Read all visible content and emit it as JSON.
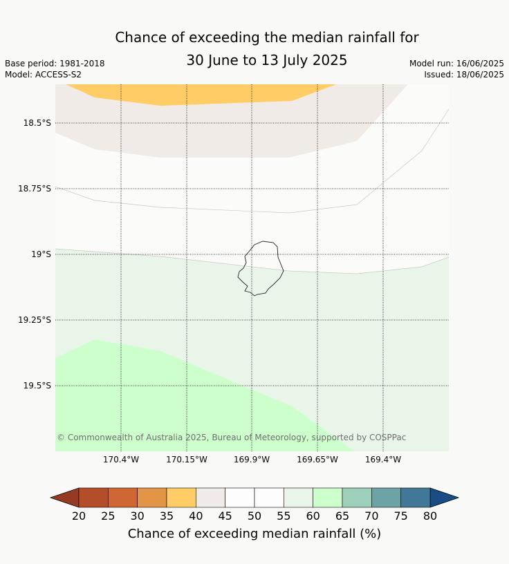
{
  "title": {
    "line1": "Chance of exceeding the median rainfall for",
    "line2": "30 June to 13 July 2025"
  },
  "meta": {
    "base_period": "Base period: 1981-2018",
    "model": "Model: ACCESS-S2",
    "model_run": "Model run: 16/06/2025",
    "issued": "Issued: 18/06/2025"
  },
  "map": {
    "lat_ticks": [
      "18.5°S",
      "18.75°S",
      "19°S",
      "19.25°S",
      "19.5°S"
    ],
    "lon_ticks": [
      "170.4°W",
      "170.15°W",
      "169.9°W",
      "169.65°W",
      "169.4°W"
    ],
    "credit": "© Commonwealth of Australia 2025, Bureau of Meteorology, supported by COSPPac",
    "regions": [
      {
        "category": "35-40",
        "color": "#ffcc66"
      },
      {
        "category": "40-45",
        "color": "#f0ebe6"
      },
      {
        "category": "45-50",
        "color": "#fbfbf9"
      },
      {
        "category": "55-60",
        "color": "#e9f5e8"
      },
      {
        "category": "60-65",
        "color": "#ccffcc"
      }
    ]
  },
  "colorbar": {
    "title": "Chance of exceeding median rainfall (%)",
    "tick_labels": [
      "20",
      "25",
      "30",
      "35",
      "40",
      "45",
      "50",
      "55",
      "60",
      "65",
      "70",
      "75",
      "80"
    ],
    "colors": [
      "#b34d2a",
      "#cf6633",
      "#e19547",
      "#ffcc66",
      "#f0ebe6",
      "#fdfdfd",
      "#fdfdfd",
      "#e9f5e8",
      "#ccffcc",
      "#9ecfbb",
      "#6ea3a6",
      "#417898"
    ],
    "under_color": "#963a22",
    "over_color": "#1a4d85"
  }
}
